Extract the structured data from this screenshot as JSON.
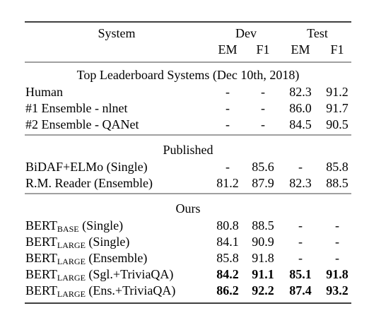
{
  "table": {
    "header": {
      "system": "System",
      "groups": [
        "Dev",
        "Test"
      ],
      "metrics": [
        "EM",
        "F1",
        "EM",
        "F1"
      ]
    },
    "sections": [
      {
        "title": "Top Leaderboard Systems (Dec 10th, 2018)",
        "rows": [
          {
            "system": {
              "name": "Human"
            },
            "cells": [
              "-",
              "-",
              "82.3",
              "91.2"
            ]
          },
          {
            "system": {
              "name": "#1 Ensemble - nlnet"
            },
            "cells": [
              "-",
              "-",
              "86.0",
              "91.7"
            ]
          },
          {
            "system": {
              "name": "#2 Ensemble - QANet"
            },
            "cells": [
              "-",
              "-",
              "84.5",
              "90.5"
            ]
          }
        ]
      },
      {
        "title": "Published",
        "rows": [
          {
            "system": {
              "name": "BiDAF+ELMo (Single)"
            },
            "cells": [
              "-",
              "85.6",
              "-",
              "85.8"
            ]
          },
          {
            "system": {
              "name": "R.M. Reader (Ensemble)"
            },
            "cells": [
              "81.2",
              "87.9",
              "82.3",
              "88.5"
            ]
          }
        ]
      },
      {
        "title": "Ours",
        "rows": [
          {
            "system": {
              "name": "BERT",
              "sub": "BASE",
              "rest": " (Single)"
            },
            "cells": [
              "80.8",
              "88.5",
              "-",
              "-"
            ]
          },
          {
            "system": {
              "name": "BERT",
              "sub": "LARGE",
              "rest": " (Single)"
            },
            "cells": [
              "84.1",
              "90.9",
              "-",
              "-"
            ]
          },
          {
            "system": {
              "name": "BERT",
              "sub": "LARGE",
              "rest": " (Ensemble)"
            },
            "cells": [
              "85.8",
              "91.8",
              "-",
              "-"
            ]
          },
          {
            "system": {
              "name": "BERT",
              "sub": "LARGE",
              "rest": " (Sgl.+TriviaQA)"
            },
            "cells": [
              "84.2",
              "91.1",
              "85.1",
              "91.8"
            ],
            "bold": true
          },
          {
            "system": {
              "name": "BERT",
              "sub": "LARGE",
              "rest": " (Ens.+TriviaQA)"
            },
            "cells": [
              "86.2",
              "92.2",
              "87.4",
              "93.2"
            ],
            "bold": true
          }
        ]
      }
    ]
  }
}
